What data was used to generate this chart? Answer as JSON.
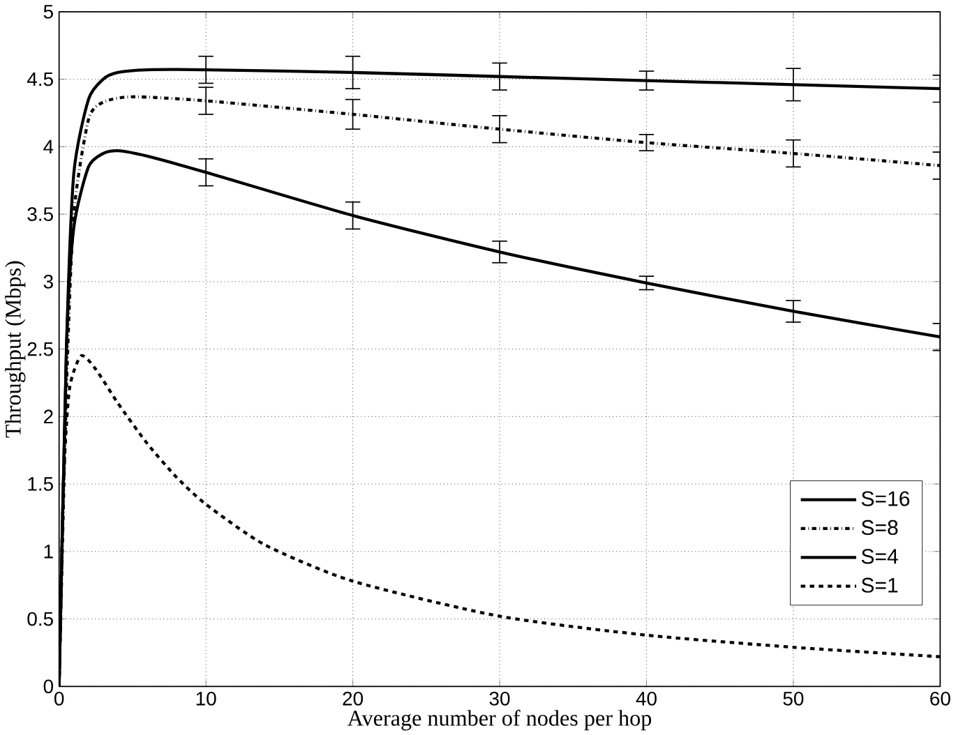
{
  "chart_data": {
    "type": "line",
    "xlabel": "Average number of nodes per hop",
    "ylabel": "Throughput (Mbps)",
    "xlim": [
      0,
      60
    ],
    "ylim": [
      0,
      5
    ],
    "xticks": [
      0,
      10,
      20,
      30,
      40,
      50,
      60
    ],
    "yticks": [
      0,
      0.5,
      1,
      1.5,
      2,
      2.5,
      3,
      3.5,
      4,
      4.5,
      5
    ],
    "grid": true,
    "legend": "bottom right",
    "marker": "none",
    "series": [
      {
        "name": "S=16",
        "color": "#000000",
        "line_style": "solid",
        "x": [
          0,
          0.5,
          1,
          2,
          3,
          4,
          6,
          10,
          20,
          30,
          40,
          50,
          60
        ],
        "values": [
          0,
          2.5,
          3.8,
          4.35,
          4.5,
          4.55,
          4.57,
          4.57,
          4.55,
          4.52,
          4.49,
          4.46,
          4.43
        ],
        "errors": [
          null,
          null,
          null,
          null,
          null,
          null,
          null,
          0.1,
          0.12,
          0.1,
          0.07,
          0.12,
          0.1
        ]
      },
      {
        "name": "S=8",
        "color": "#000000",
        "line_style": "dashdot",
        "x": [
          0,
          0.5,
          1,
          2,
          3,
          5,
          10,
          20,
          30,
          40,
          50,
          60
        ],
        "values": [
          0,
          2.2,
          3.5,
          4.2,
          4.33,
          4.37,
          4.34,
          4.24,
          4.13,
          4.03,
          3.95,
          3.86
        ],
        "errors": [
          null,
          null,
          null,
          null,
          null,
          null,
          0.1,
          0.11,
          0.1,
          0.06,
          0.1,
          0.1
        ]
      },
      {
        "name": "S=4",
        "color": "#000000",
        "line_style": "solid",
        "x": [
          0,
          0.5,
          1,
          2,
          3,
          4,
          6,
          10,
          20,
          30,
          40,
          50,
          60
        ],
        "values": [
          0,
          2.5,
          3.4,
          3.85,
          3.95,
          3.97,
          3.93,
          3.81,
          3.49,
          3.22,
          2.99,
          2.78,
          2.59
        ],
        "errors": [
          null,
          null,
          null,
          null,
          null,
          null,
          null,
          0.1,
          0.1,
          0.08,
          0.05,
          0.08,
          0.1
        ]
      },
      {
        "name": "S=1",
        "color": "#000000",
        "line_style": "dashed",
        "x": [
          0,
          0.3,
          0.7,
          1.5,
          2.5,
          4,
          6,
          8,
          10,
          14,
          20,
          30,
          40,
          50,
          60
        ],
        "values": [
          0,
          1.5,
          2.2,
          2.45,
          2.35,
          2.1,
          1.8,
          1.55,
          1.35,
          1.05,
          0.78,
          0.52,
          0.38,
          0.29,
          0.22
        ]
      }
    ]
  }
}
